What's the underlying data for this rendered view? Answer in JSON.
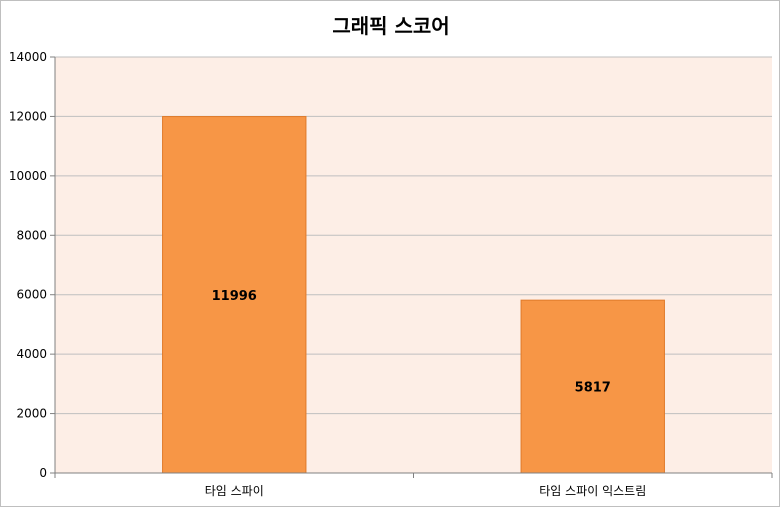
{
  "chart_data": {
    "type": "bar",
    "title": "그래픽 스코어",
    "categories": [
      "타임 스파이",
      "타임 스파이 익스트림"
    ],
    "values": [
      11996,
      5817
    ],
    "data_labels": [
      "11996",
      "5817"
    ],
    "ylim": [
      0,
      14000
    ],
    "yticks": [
      0,
      2000,
      4000,
      6000,
      8000,
      10000,
      12000,
      14000
    ],
    "ytick_labels": [
      "0",
      "2000",
      "4000",
      "6000",
      "8000",
      "10000",
      "12000",
      "14000"
    ],
    "grid": true,
    "legend": "none",
    "colors": {
      "bar": "#F79646",
      "bar_border": "#E07A2A",
      "plot_background": "#FDEEE6",
      "gridline": "#BFBFBF",
      "axis": "#808080"
    }
  }
}
